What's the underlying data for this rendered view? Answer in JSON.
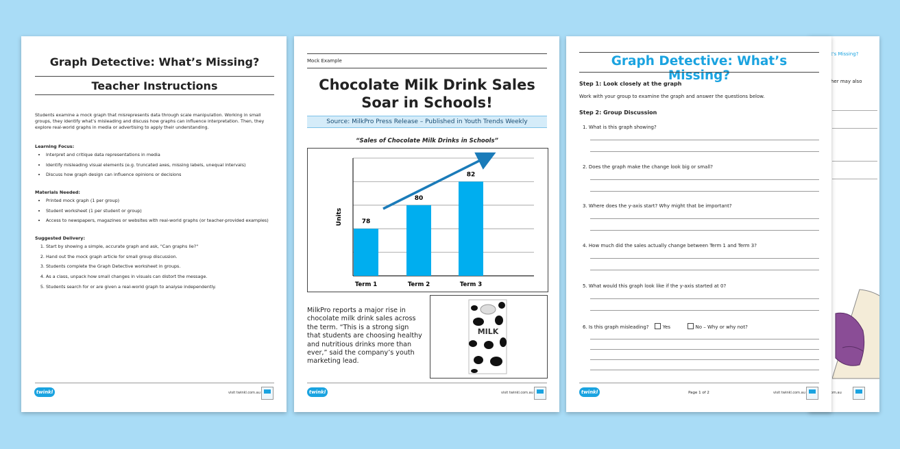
{
  "page1": {
    "title": "Graph Detective: What’s Missing?",
    "subtitle": "Teacher Instructions",
    "intro": "Students examine a mock graph that misrepresents data through scale manipulation. Working in small groups, they identify what’s misleading and discuss how graphs can influence interpretation. Then, they explore real-world graphs in media or advertising to apply their understanding.",
    "learning_focus": {
      "heading": "Learning Focus:",
      "items": [
        "Interpret and critique data representations in media",
        "Identify misleading visual elements (e.g. truncated axes, missing labels, unequal intervals)",
        "Discuss how graph design can influence opinions or decisions"
      ]
    },
    "materials": {
      "heading": "Materials Needed:",
      "items": [
        "Printed mock graph (1 per group)",
        "Student worksheet (1 per student or group)",
        "Access to newspapers, magazines or websites with real-world graphs (or teacher-provided examples)"
      ]
    },
    "delivery": {
      "heading": "Suggested Delivery:",
      "items": [
        "Start by showing a simple, accurate graph and ask, \"Can graphs lie?\"",
        "Hand out the mock graph article for small group discussion.",
        "Students complete the Graph Detective worksheet in groups.",
        "As a class, unpack how small changes in visuals can distort the message.",
        "Students search for or are given a real-world graph to analyse independently."
      ]
    },
    "footer_url": "visit twinkl.com.au"
  },
  "page2": {
    "label": "Mock Example",
    "title_line1": "Chocolate Milk Drink Sales",
    "title_line2": "Soar in Schools!",
    "source": "Source: MilkPro Press Release – Published in Youth Trends Weekly",
    "article": "MilkPro reports a major rise in chocolate milk drink sales across the term. “This is a strong sign that students are choosing healthy and nutritious drinks more than ever,” said the company’s youth marketing lead.",
    "milk_label": "MILK",
    "footer_url": "visit twinkl.com.au"
  },
  "chart_data": {
    "type": "bar",
    "title": "“Sales of Chocolate Milk Drinks in Schools”",
    "categories": [
      "Term 1",
      "Term 2",
      "Term 3"
    ],
    "values": [
      78,
      80,
      82
    ],
    "xlabel": "",
    "ylabel": "Units",
    "ylim": [
      74,
      84
    ],
    "grid": true,
    "bar_color": "#00aeef",
    "arrow_color": "#1a7bb9"
  },
  "page3": {
    "title": "Graph Detective: What’s Missing?",
    "step1": "Step 1: Look closely at the graph",
    "step1_text": "Work with your group to examine the graph and answer the questions below.",
    "step2": "Step 2: Group Discussion",
    "questions": [
      "1.   What is this graph showing?",
      "2.   Does the graph make the change look big or small?",
      "3.   Where does the y-axis start? Why might that be important?",
      "4.   How much did the sales actually change between Term 1 and Term 3?",
      "5.   What would this graph look like if the y-axis started at 0?",
      "6.   Is this graph misleading?"
    ],
    "yes_label": "Yes",
    "no_label": "No – Why or why not?",
    "page_num": "Page 1 of 2",
    "footer_url": "visit twinkl.com.au"
  },
  "page4": {
    "frag1": "t's Missing?",
    "frag2": "her may also",
    "footer_url": "om.au"
  },
  "brand": {
    "logo": "twinkl",
    "accent": "#1aa3e0"
  }
}
